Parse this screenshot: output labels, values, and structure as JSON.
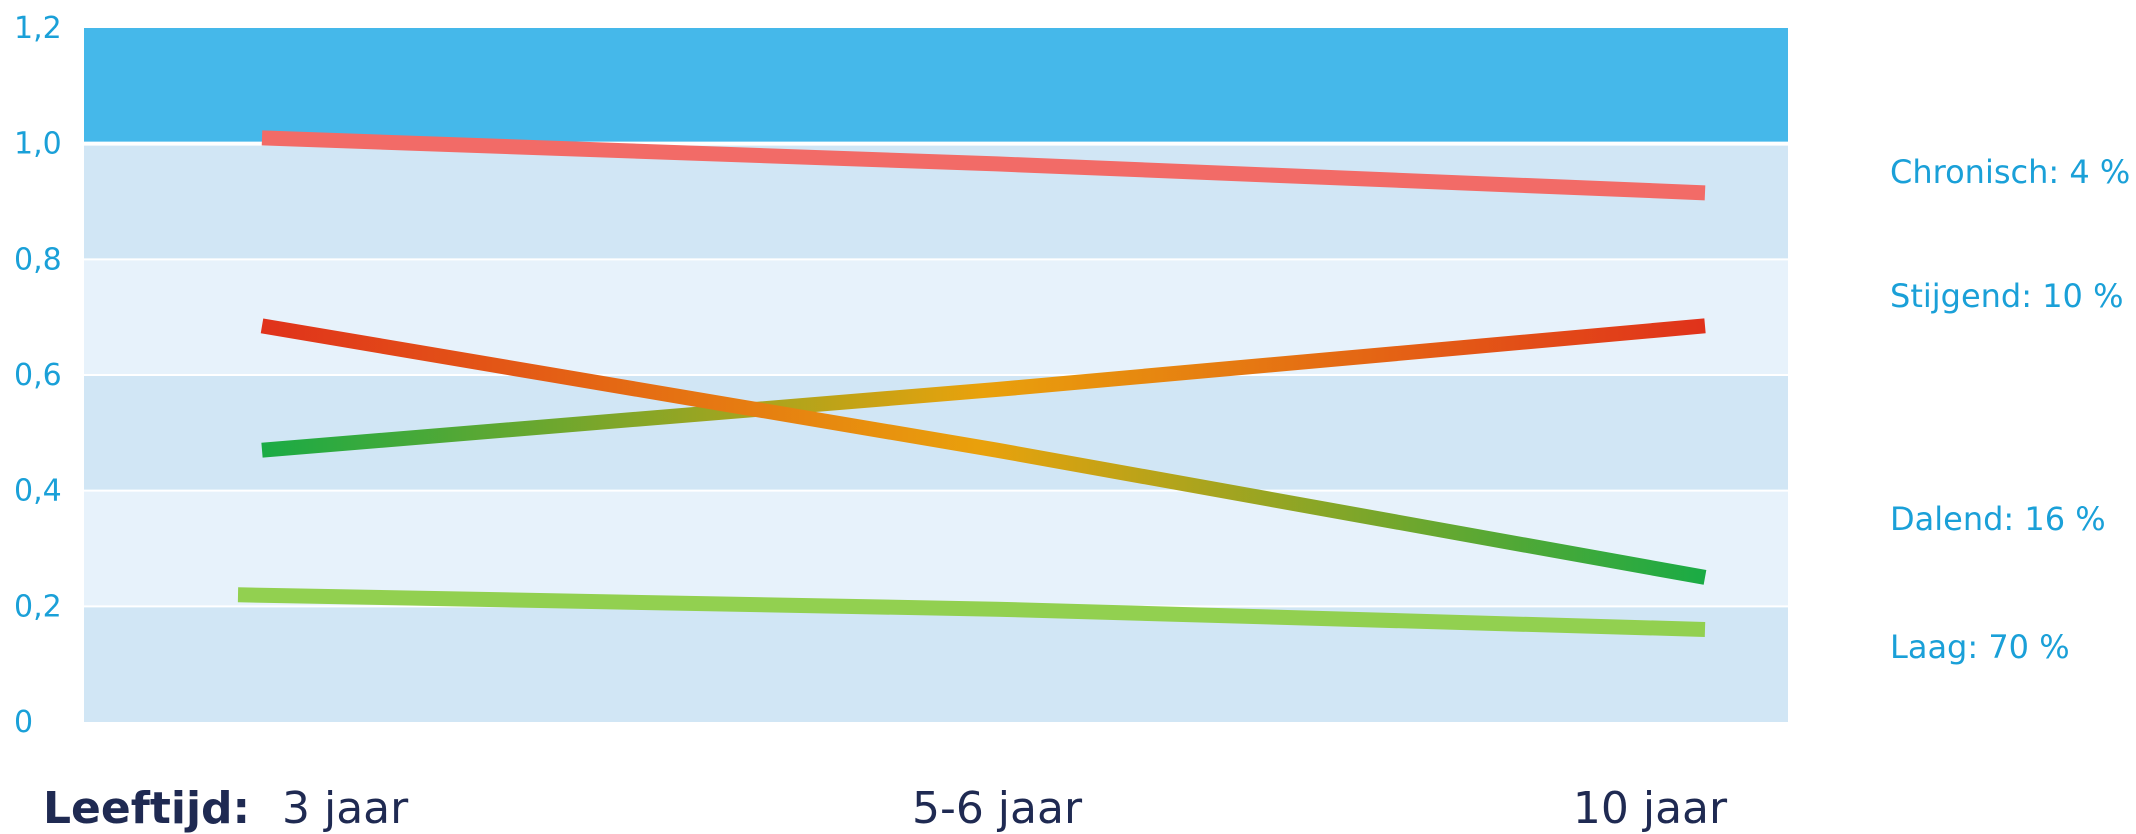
{
  "chart_data": {
    "type": "line",
    "xlabel": "Leeftijd:",
    "categories": [
      "3 jaar",
      "5-6 jaar",
      "10 jaar"
    ],
    "ylim": [
      0,
      1.2
    ],
    "yticks": [
      "0",
      "0,2",
      "0,4",
      "0,6",
      "0,8",
      "1,0",
      "1,2"
    ],
    "grid": true,
    "series": [
      {
        "name": "Chronisch: 4 %",
        "values": [
          1.01,
          0.965,
          0.915
        ],
        "colors": [
          "#f26b67",
          "#f26b67",
          "#f26b67"
        ]
      },
      {
        "name": "Stijgend: 10 %",
        "values": [
          0.47,
          0.575,
          0.685
        ],
        "colors": [
          "#1aab45",
          "#e9a10c",
          "#e0321b"
        ]
      },
      {
        "name": "Dalend: 16 %",
        "values": [
          0.685,
          0.47,
          0.25
        ],
        "colors": [
          "#e0321b",
          "#e9a10c",
          "#1aab45"
        ]
      },
      {
        "name": "Laag: 70 %",
        "values": [
          0.22,
          0.195,
          0.16
        ],
        "colors": [
          "#92d050",
          "#92d050",
          "#92d050"
        ]
      }
    ],
    "colors": {
      "top_band": "#45b8ea",
      "band_dark": "#d1e6f5",
      "band_light": "#e7f2fb"
    }
  }
}
